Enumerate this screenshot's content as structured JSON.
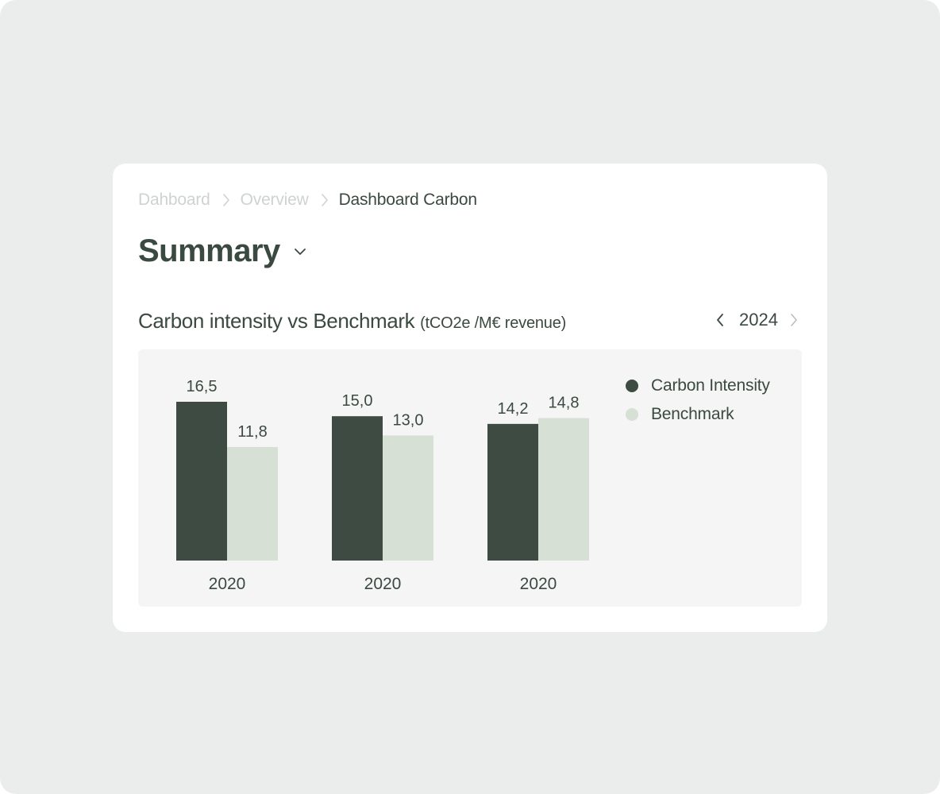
{
  "breadcrumb": {
    "items": [
      "Dahboard",
      "Overview",
      "Dashboard Carbon"
    ]
  },
  "page": {
    "title": "Summary"
  },
  "chart_section": {
    "title": "Carbon intensity vs Benchmark",
    "unit": "(tCO2e /M€ revenue)",
    "year": "2024"
  },
  "icons": {
    "breadcrumb_separator": "chevron-right-icon",
    "title_dropdown": "chevron-down-icon",
    "prev_year": "chevron-left-icon",
    "next_year": "chevron-right-icon"
  },
  "colors": {
    "carbon_intensity": "#3d4b42",
    "benchmark": "#d6e0d5",
    "text": "#3b4a41",
    "muted": "#cfd3d0",
    "panel": "#f4f5f4"
  },
  "chart_data": {
    "type": "bar",
    "categories": [
      "2020",
      "2020",
      "2020"
    ],
    "series": [
      {
        "name": "Carbon Intensity",
        "values": [
          16.5,
          15.0,
          14.2
        ],
        "labels": [
          "16,5",
          "15,0",
          "14,2"
        ],
        "color": "#3d4b42"
      },
      {
        "name": "Benchmark",
        "values": [
          11.8,
          13.0,
          14.8
        ],
        "labels": [
          "11,8",
          "13,0",
          "14,8"
        ],
        "color": "#d6e0d5"
      }
    ],
    "legend_position": "top-right",
    "grid": false
  }
}
